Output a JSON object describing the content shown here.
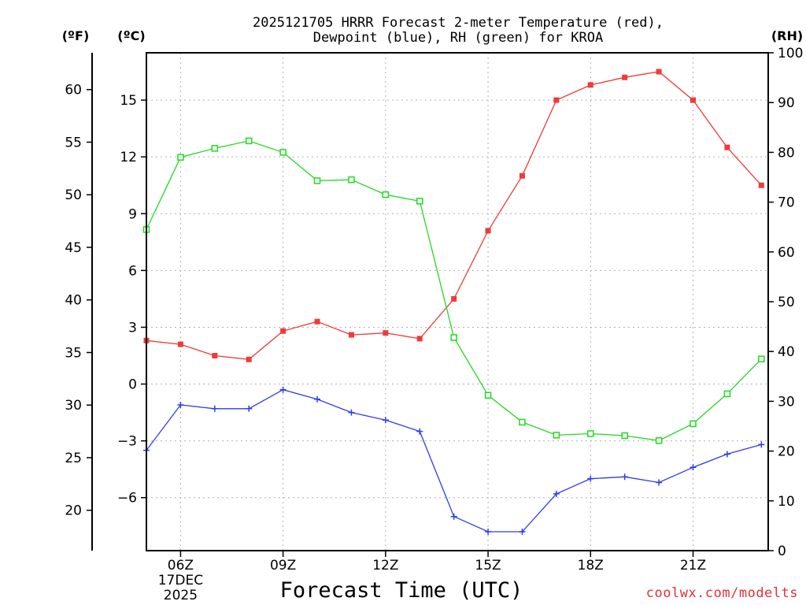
{
  "chart_data": {
    "type": "line",
    "title_line1": "2025121705 HRRR Forecast 2-meter Temperature (red),",
    "title_line2": "Dewpoint (blue), RH (green) for KROA",
    "xlabel": "Forecast Time (UTC)",
    "credit": "coolwx.com/modelts",
    "units": {
      "fahrenheit": "(ºF)",
      "celsius": "(ºC)",
      "rh": "(RH)"
    },
    "x_hours": [
      5,
      6,
      7,
      8,
      9,
      10,
      11,
      12,
      13,
      14,
      15,
      16,
      17,
      18,
      19,
      20,
      21,
      22,
      23
    ],
    "xlim": [
      5,
      23.2
    ],
    "x_ticks": [
      {
        "hour": 6,
        "label": "06Z",
        "sublabel1": "17DEC",
        "sublabel2": "2025"
      },
      {
        "hour": 9,
        "label": "09Z"
      },
      {
        "hour": 12,
        "label": "12Z"
      },
      {
        "hour": 15,
        "label": "15Z"
      },
      {
        "hour": 18,
        "label": "18Z"
      },
      {
        "hour": 21,
        "label": "21Z"
      }
    ],
    "celsius_axis": {
      "ylim": [
        -8.8,
        17.5
      ],
      "ticks": [
        15,
        12,
        9,
        6,
        3,
        0,
        -3,
        -6
      ],
      "tick_labels": [
        "15",
        "12",
        "9",
        "6",
        "3",
        "0",
        "−3",
        "−6"
      ]
    },
    "fahrenheit_axis": {
      "ticks": [
        60,
        55,
        50,
        45,
        40,
        35,
        30,
        25,
        20
      ],
      "tick_labels": [
        "60",
        "55",
        "50",
        "45",
        "40",
        "35",
        "30",
        "25",
        "20"
      ]
    },
    "rh_axis": {
      "ylim": [
        0,
        100
      ],
      "ticks": [
        100,
        90,
        80,
        70,
        60,
        50,
        40,
        30,
        20,
        10,
        0
      ],
      "tick_labels": [
        "100",
        "90",
        "80",
        "70",
        "60",
        "50",
        "40",
        "30",
        "20",
        "10",
        "0"
      ]
    },
    "series": [
      {
        "name": "Temperature",
        "units": "C",
        "color": "#f03a3a",
        "marker": "filled-square",
        "values": [
          2.3,
          2.1,
          1.5,
          1.3,
          2.8,
          3.3,
          2.6,
          2.7,
          2.4,
          4.5,
          8.1,
          11.0,
          15.0,
          15.8,
          16.2,
          16.5,
          15.0,
          12.5,
          10.5
        ]
      },
      {
        "name": "Dewpoint",
        "units": "C",
        "color": "#2d3cf0",
        "marker": "plus",
        "values": [
          -3.5,
          -1.1,
          -1.3,
          -1.3,
          -0.3,
          -0.8,
          -1.5,
          -1.9,
          -2.5,
          -7.0,
          -7.8,
          -7.8,
          -5.8,
          -5.0,
          -4.9,
          -5.2,
          -4.4,
          -3.7,
          -3.2
        ]
      },
      {
        "name": "RH",
        "units": "%",
        "color": "#22d922",
        "marker": "open-square",
        "values": [
          64.5,
          79.0,
          80.8,
          82.3,
          80.0,
          74.3,
          74.5,
          71.5,
          70.2,
          42.8,
          31.2,
          25.8,
          23.2,
          23.5,
          23.1,
          22.1,
          25.5,
          31.5,
          38.5
        ]
      }
    ]
  }
}
